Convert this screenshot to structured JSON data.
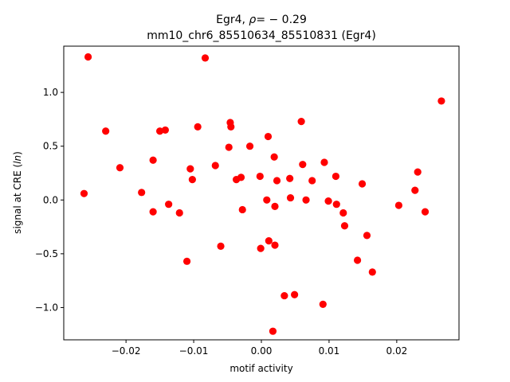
{
  "chart_data": {
    "type": "scatter",
    "title_prefix": "Egr4, ",
    "title_rho_symbol": "ρ",
    "title_rho_value": "= − 0.29",
    "subtitle": "mm10_chr6_85510634_85510831 (Egr4)",
    "xlabel": "motif activity",
    "ylabel_prefix": "signal at CRE (",
    "ylabel_math": "ln",
    "ylabel_suffix": ")",
    "xlim": [
      -0.0292,
      0.0292
    ],
    "ylim": [
      -1.3,
      1.43
    ],
    "x_ticks": [
      -0.02,
      -0.01,
      0.0,
      0.01,
      0.02
    ],
    "x_tick_labels": [
      "−0.02",
      "−0.01",
      "0.00",
      "0.01",
      "0.02"
    ],
    "y_ticks": [
      -1.0,
      -0.5,
      0.0,
      0.5,
      1.0
    ],
    "y_tick_labels": [
      "−1.0",
      "−0.5",
      "0.0",
      "0.5",
      "1.0"
    ],
    "grid": false,
    "marker_color": "#ff0000",
    "points": [
      {
        "x": -0.0256,
        "y": 1.33
      },
      {
        "x": -0.0083,
        "y": 1.32
      },
      {
        "x": 0.0266,
        "y": 0.92
      },
      {
        "x": -0.0262,
        "y": 0.06
      },
      {
        "x": -0.023,
        "y": 0.64
      },
      {
        "x": -0.0209,
        "y": 0.3
      },
      {
        "x": -0.0177,
        "y": 0.07
      },
      {
        "x": -0.016,
        "y": 0.37
      },
      {
        "x": -0.016,
        "y": -0.11
      },
      {
        "x": -0.015,
        "y": 0.64
      },
      {
        "x": -0.0142,
        "y": 0.65
      },
      {
        "x": -0.0137,
        "y": -0.04
      },
      {
        "x": -0.0121,
        "y": -0.12
      },
      {
        "x": -0.011,
        "y": -0.57
      },
      {
        "x": -0.0105,
        "y": 0.29
      },
      {
        "x": -0.0102,
        "y": 0.19
      },
      {
        "x": -0.0094,
        "y": 0.68
      },
      {
        "x": -0.0068,
        "y": 0.32
      },
      {
        "x": -0.006,
        "y": -0.43
      },
      {
        "x": -0.0048,
        "y": 0.49
      },
      {
        "x": -0.0046,
        "y": 0.72
      },
      {
        "x": -0.0045,
        "y": 0.68
      },
      {
        "x": -0.0037,
        "y": 0.19
      },
      {
        "x": -0.003,
        "y": 0.21
      },
      {
        "x": -0.0028,
        "y": -0.09
      },
      {
        "x": -0.0017,
        "y": 0.5
      },
      {
        "x": -0.0002,
        "y": 0.22
      },
      {
        "x": -0.0001,
        "y": -0.45
      },
      {
        "x": 0.0008,
        "y": 0.0
      },
      {
        "x": 0.001,
        "y": 0.59
      },
      {
        "x": 0.0011,
        "y": -0.38
      },
      {
        "x": 0.0017,
        "y": -1.22
      },
      {
        "x": 0.0019,
        "y": 0.4
      },
      {
        "x": 0.002,
        "y": -0.06
      },
      {
        "x": 0.002,
        "y": -0.42
      },
      {
        "x": 0.0023,
        "y": 0.18
      },
      {
        "x": 0.0034,
        "y": -0.89
      },
      {
        "x": 0.0042,
        "y": 0.2
      },
      {
        "x": 0.0043,
        "y": 0.02
      },
      {
        "x": 0.0049,
        "y": -0.88
      },
      {
        "x": 0.0059,
        "y": 0.73
      },
      {
        "x": 0.0061,
        "y": 0.33
      },
      {
        "x": 0.0066,
        "y": 0.0
      },
      {
        "x": 0.0075,
        "y": 0.18
      },
      {
        "x": 0.0091,
        "y": -0.97
      },
      {
        "x": 0.0093,
        "y": 0.35
      },
      {
        "x": 0.0099,
        "y": -0.01
      },
      {
        "x": 0.011,
        "y": 0.22
      },
      {
        "x": 0.0111,
        "y": -0.04
      },
      {
        "x": 0.0121,
        "y": -0.12
      },
      {
        "x": 0.0123,
        "y": -0.24
      },
      {
        "x": 0.0142,
        "y": -0.56
      },
      {
        "x": 0.0149,
        "y": 0.15
      },
      {
        "x": 0.0156,
        "y": -0.33
      },
      {
        "x": 0.0164,
        "y": -0.67
      },
      {
        "x": 0.0203,
        "y": -0.05
      },
      {
        "x": 0.0227,
        "y": 0.09
      },
      {
        "x": 0.0231,
        "y": 0.26
      },
      {
        "x": 0.0242,
        "y": -0.11
      }
    ]
  }
}
